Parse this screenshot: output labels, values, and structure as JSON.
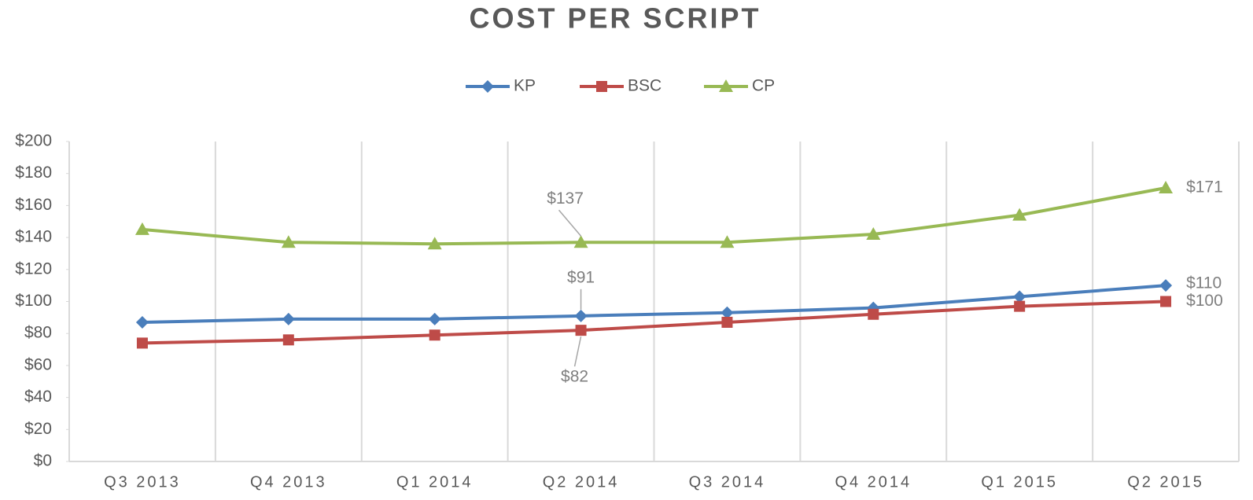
{
  "chart_data": {
    "type": "line",
    "title": "COST PER SCRIPT",
    "categories": [
      "Q3 2013",
      "Q4 2013",
      "Q1 2014",
      "Q2 2014",
      "Q3 2014",
      "Q4 2014",
      "Q1 2015",
      "Q2 2015"
    ],
    "series": [
      {
        "name": "KP",
        "color": "#4a7ebb",
        "marker": "diamond",
        "values": [
          87,
          89,
          89,
          91,
          93,
          96,
          103,
          110
        ],
        "value_labels": [
          null,
          null,
          null,
          "$91",
          null,
          null,
          null,
          "$110"
        ]
      },
      {
        "name": "BSC",
        "color": "#be4b48",
        "marker": "square",
        "values": [
          74,
          76,
          79,
          82,
          87,
          92,
          97,
          100
        ],
        "value_labels": [
          null,
          null,
          null,
          "$82",
          null,
          null,
          null,
          "$100"
        ]
      },
      {
        "name": "CP",
        "color": "#98b954",
        "marker": "triangle",
        "values": [
          145,
          137,
          136,
          137,
          137,
          142,
          154,
          171
        ],
        "value_labels": [
          null,
          null,
          null,
          "$137",
          null,
          null,
          null,
          "$171"
        ]
      }
    ],
    "ylim": [
      0,
      200
    ],
    "yticks": [
      {
        "value": 0,
        "label": "$0"
      },
      {
        "value": 20,
        "label": "$20"
      },
      {
        "value": 40,
        "label": "$40"
      },
      {
        "value": 60,
        "label": "$60"
      },
      {
        "value": 80,
        "label": "$80"
      },
      {
        "value": 100,
        "label": "$100"
      },
      {
        "value": 120,
        "label": "$120"
      },
      {
        "value": 140,
        "label": "$140"
      },
      {
        "value": 160,
        "label": "$160"
      },
      {
        "value": 180,
        "label": "$180"
      },
      {
        "value": 200,
        "label": "$200"
      }
    ],
    "legend": "top"
  }
}
